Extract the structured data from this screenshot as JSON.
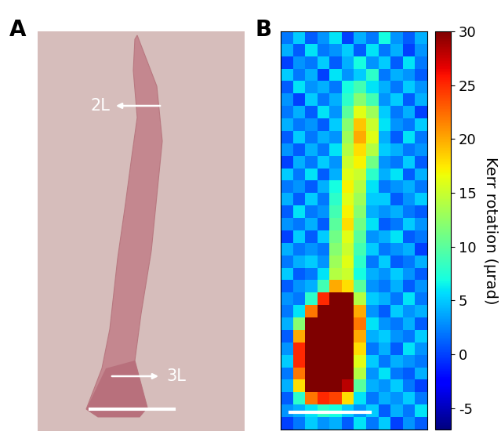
{
  "panel_a": {
    "label": "A",
    "annotations": [
      "2L",
      "3L"
    ]
  },
  "chart_data": {
    "type": "heatmap",
    "panel_label": "B",
    "tick_labels": false,
    "cells": [
      [
        2,
        5,
        1,
        3,
        6,
        0,
        4,
        2,
        7,
        3,
        1,
        4
      ],
      [
        4,
        1,
        6,
        2,
        3,
        5,
        1,
        6,
        2,
        4,
        0,
        3
      ],
      [
        0,
        3,
        2,
        5,
        1,
        4,
        7,
        3,
        5,
        1,
        6,
        2
      ],
      [
        5,
        2,
        4,
        0,
        6,
        3,
        5,
        8,
        2,
        4,
        3,
        1
      ],
      [
        1,
        6,
        3,
        4,
        2,
        7,
        9,
        6,
        4,
        2,
        5,
        3
      ],
      [
        3,
        0,
        5,
        2,
        4,
        8,
        12,
        9,
        3,
        5,
        1,
        4
      ],
      [
        2,
        4,
        1,
        6,
        3,
        10,
        16,
        13,
        5,
        2,
        4,
        0
      ],
      [
        4,
        2,
        3,
        1,
        5,
        12,
        19,
        15,
        6,
        3,
        2,
        5
      ],
      [
        1,
        5,
        2,
        4,
        3,
        13,
        20,
        16,
        4,
        1,
        6,
        2
      ],
      [
        3,
        1,
        4,
        2,
        6,
        14,
        18,
        14,
        5,
        4,
        2,
        3
      ],
      [
        0,
        4,
        2,
        5,
        3,
        15,
        17,
        11,
        3,
        2,
        5,
        1
      ],
      [
        5,
        2,
        6,
        1,
        4,
        16,
        15,
        8,
        4,
        6,
        1,
        4
      ],
      [
        2,
        3,
        1,
        4,
        7,
        17,
        14,
        6,
        2,
        3,
        4,
        2
      ],
      [
        4,
        1,
        5,
        2,
        8,
        16,
        13,
        5,
        5,
        1,
        3,
        5
      ],
      [
        1,
        6,
        2,
        3,
        9,
        17,
        12,
        4,
        3,
        4,
        2,
        1
      ],
      [
        3,
        2,
        4,
        1,
        10,
        18,
        11,
        6,
        1,
        2,
        5,
        3
      ],
      [
        0,
        5,
        1,
        5,
        11,
        16,
        10,
        3,
        4,
        6,
        1,
        2
      ],
      [
        4,
        2,
        3,
        2,
        12,
        15,
        9,
        5,
        2,
        3,
        4,
        0
      ],
      [
        2,
        4,
        5,
        3,
        13,
        16,
        8,
        2,
        5,
        1,
        2,
        4
      ],
      [
        5,
        1,
        2,
        6,
        14,
        15,
        7,
        4,
        3,
        5,
        3,
        1
      ],
      [
        1,
        3,
        4,
        9,
        20,
        18,
        10,
        3,
        2,
        4,
        1,
        3
      ],
      [
        3,
        2,
        8,
        25,
        30,
        30,
        14,
        5,
        4,
        2,
        6,
        2
      ],
      [
        2,
        6,
        22,
        30,
        30,
        30,
        20,
        3,
        1,
        5,
        3,
        4
      ],
      [
        4,
        12,
        30,
        30,
        30,
        30,
        22,
        6,
        3,
        2,
        4,
        1
      ],
      [
        1,
        20,
        30,
        30,
        30,
        30,
        20,
        4,
        5,
        3,
        2,
        5
      ],
      [
        3,
        25,
        30,
        30,
        30,
        30,
        18,
        2,
        4,
        1,
        6,
        3
      ],
      [
        5,
        25,
        30,
        30,
        30,
        30,
        16,
        5,
        2,
        4,
        3,
        2
      ],
      [
        2,
        22,
        30,
        30,
        30,
        30,
        14,
        3,
        6,
        2,
        1,
        4
      ],
      [
        4,
        18,
        30,
        30,
        30,
        28,
        10,
        4,
        3,
        5,
        2,
        0
      ],
      [
        1,
        8,
        22,
        25,
        24,
        18,
        6,
        2,
        4,
        3,
        5,
        2
      ],
      [
        3,
        4,
        6,
        8,
        7,
        5,
        3,
        5,
        1,
        4,
        2,
        6
      ],
      [
        0,
        2,
        5,
        3,
        4,
        1,
        6,
        2,
        5,
        0,
        3,
        1
      ]
    ],
    "colorbar_label": "Kerr rotation (µrad)",
    "colorbar_range": [
      -7,
      30
    ],
    "colorbar_ticks": [
      -5,
      0,
      5,
      10,
      15,
      20,
      25,
      30
    ]
  }
}
